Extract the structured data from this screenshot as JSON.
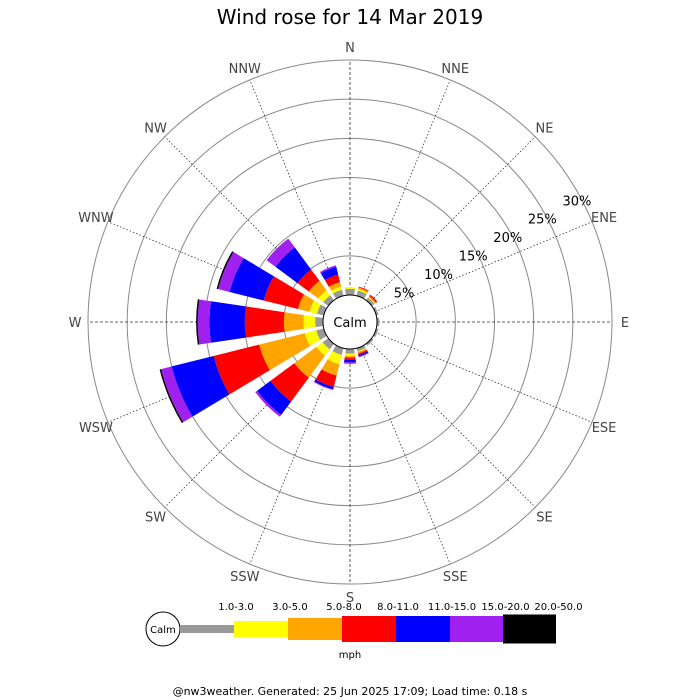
{
  "chart_data": {
    "type": "windrose",
    "title": "Wind rose for 14 Mar 2019",
    "directions": [
      "N",
      "NNE",
      "NE",
      "ENE",
      "E",
      "ESE",
      "SE",
      "SSE",
      "S",
      "SSW",
      "SW",
      "WSW",
      "W",
      "WNW",
      "NW",
      "NNW"
    ],
    "ring_labels": [
      "5%",
      "10%",
      "15%",
      "20%",
      "25%",
      "30%"
    ],
    "ring_values": [
      5,
      10,
      15,
      20,
      25,
      30
    ],
    "r_max": 30,
    "calm_label": "Calm",
    "unit_label": "mph",
    "speed_bins": [
      {
        "label": "1.0-3.0",
        "color": "#999999"
      },
      {
        "label": "3.0-5.0",
        "color": "#ffff00"
      },
      {
        "label": "5.0-8.0",
        "color": "#ffa500"
      },
      {
        "label": "8.0-11.0",
        "color": "#ff0000"
      },
      {
        "label": "11.0-15.0",
        "color": "#0000ff"
      },
      {
        "label": "15.0-20.0",
        "color": "#a020f0"
      },
      {
        "label": "20.0-50.0",
        "color": "#000000"
      }
    ],
    "series": [
      {
        "direction": "N",
        "values": [
          0.8,
          0.2,
          0.0,
          0.0,
          0.0,
          0.0,
          0.0
        ]
      },
      {
        "direction": "NNE",
        "values": [
          0.7,
          0.2,
          0.2,
          0.1,
          0.0,
          0.0,
          0.0
        ]
      },
      {
        "direction": "NE",
        "values": [
          0.4,
          0.1,
          0.2,
          0.2,
          0.0,
          0.0,
          0.0
        ]
      },
      {
        "direction": "ENE",
        "values": [
          0.3,
          0.0,
          0.0,
          0.0,
          0.0,
          0.0,
          0.0
        ]
      },
      {
        "direction": "E",
        "values": [
          0.3,
          0.0,
          0.0,
          0.0,
          0.0,
          0.0,
          0.0
        ]
      },
      {
        "direction": "ESE",
        "values": [
          0.3,
          0.0,
          0.0,
          0.0,
          0.0,
          0.0,
          0.0
        ]
      },
      {
        "direction": "SE",
        "values": [
          0.3,
          0.0,
          0.0,
          0.0,
          0.0,
          0.0,
          0.0
        ]
      },
      {
        "direction": "SSE",
        "values": [
          0.4,
          0.1,
          0.2,
          0.2,
          0.2,
          0.1,
          0.0
        ]
      },
      {
        "direction": "S",
        "values": [
          0.6,
          0.3,
          0.2,
          0.3,
          0.3,
          0.2,
          0.0
        ]
      },
      {
        "direction": "SSW",
        "values": [
          0.9,
          1.2,
          1.5,
          1.5,
          0.3,
          0.1,
          0.0
        ]
      },
      {
        "direction": "SW",
        "values": [
          0.9,
          1.0,
          3.5,
          3.8,
          2.1,
          0.3,
          0.0
        ]
      },
      {
        "direction": "WSW",
        "values": [
          1.0,
          1.5,
          6.0,
          6.0,
          5.5,
          1.4,
          0.2
        ]
      },
      {
        "direction": "W",
        "values": [
          1.0,
          1.5,
          2.5,
          5.0,
          4.5,
          1.5,
          0.2
        ]
      },
      {
        "direction": "WNW",
        "values": [
          0.9,
          1.0,
          1.5,
          4.5,
          4.5,
          1.5,
          0.2
        ]
      },
      {
        "direction": "NW",
        "values": [
          0.8,
          0.8,
          1.5,
          1.8,
          3.5,
          1.4,
          0.0
        ]
      },
      {
        "direction": "NNW",
        "values": [
          0.8,
          0.4,
          0.6,
          1.0,
          1.0,
          0.2,
          0.0
        ]
      }
    ]
  },
  "footer": "@nw3weather. Generated: 25 Jun 2025 17:09; Load time: 0.18 s"
}
